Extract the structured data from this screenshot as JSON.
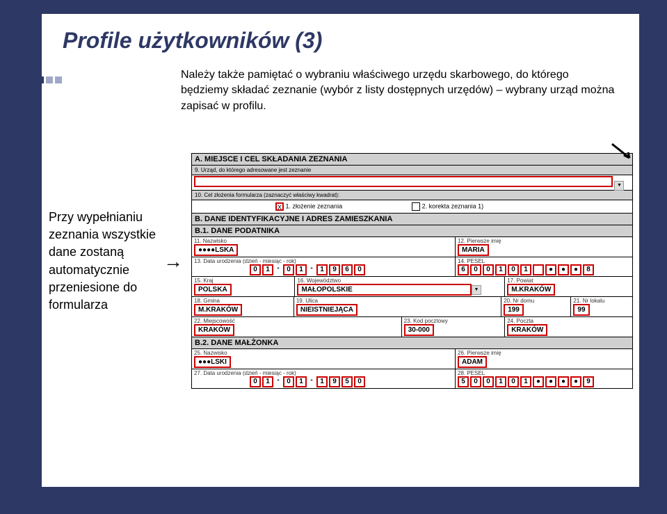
{
  "title": "Profile użytkowników (3)",
  "intro_text": "Należy także pamiętać o wybraniu właściwego urzędu skarbowego, do którego będziemy składać zeznanie (wybór z listy dostępnych urzędów) – wybrany urząd można zapisać w profilu.",
  "side_text": "Przy wypełnianiu zeznania wszystkie dane zostaną automatycznie przeniesione do formularza",
  "form": {
    "section_a": "A. MIEJSCE I CEL SKŁADANIA ZEZNANIA",
    "field_9_label": "9. Urząd, do którego adresowane jest zeznanie",
    "field_10_label": "10. Cel złożenia formularza (zaznaczyć właściwy kwadrat):",
    "opt_1": "1. złożenie zeznania",
    "opt_2": "2. korekta zeznania 1)",
    "section_b": "B. DANE IDENTYFIKACYJNE I ADRES ZAMIESZKANIA",
    "section_b1": "B.1. DANE PODATNIKA",
    "f11_label": "11. Nazwisko",
    "f11_val": "●●●●LSKA",
    "f12_label": "12. Pierwsze imię",
    "f12_val": "MARIA",
    "f13_label": "13. Data urodzenia (dzień - miesiąc - rok)",
    "f13_vals": [
      "0",
      "1",
      "-",
      "0",
      "1",
      "-",
      "1",
      "9",
      "6",
      "0"
    ],
    "f14_label": "14. PESEL",
    "f14_vals": [
      "6",
      "0",
      "0",
      "1",
      "0",
      "1",
      "",
      "●",
      "●",
      "●",
      "8"
    ],
    "f15_label": "15. Kraj",
    "f15_val": "POLSKA",
    "f16_label": "16. Województwo",
    "f16_val": "MAŁOPOLSKIE",
    "f17_label": "17. Powiat",
    "f17_val": "M.KRAKÓW",
    "f18_label": "18. Gmina",
    "f18_val": "M.KRAKÓW",
    "f19_label": "19. Ulica",
    "f19_val": "NIEISTNIEJĄCA",
    "f20_label": "20. Nr domu",
    "f20_val": "199",
    "f21_label": "21. Nr lokalu",
    "f21_val": "99",
    "f22_label": "22. Miejscowość",
    "f22_val": "KRAKÓW",
    "f23_label": "23. Kod pocztowy",
    "f23_val": "30-000",
    "f24_label": "24. Poczta",
    "f24_val": "KRAKÓW",
    "section_b2": "B.2. DANE MAŁŻONKA",
    "f25_label": "25. Nazwisko",
    "f25_val": "●●●LSKI",
    "f26_label": "26. Pierwsze imię",
    "f26_val": "ADAM",
    "f27_label": "27. Data urodzenia (dzień - miesiąc - rok)",
    "f27_vals": [
      "0",
      "1",
      "-",
      "0",
      "1",
      "-",
      "1",
      "9",
      "5",
      "0"
    ],
    "f28_label": "28. PESEL",
    "f28_vals": [
      "5",
      "0",
      "0",
      "1",
      "0",
      "1",
      "●",
      "●",
      "●",
      "●",
      "9"
    ]
  },
  "colors": {
    "bg": "#2d3864",
    "red": "#cc0000",
    "gray": "#d0d0d0"
  }
}
